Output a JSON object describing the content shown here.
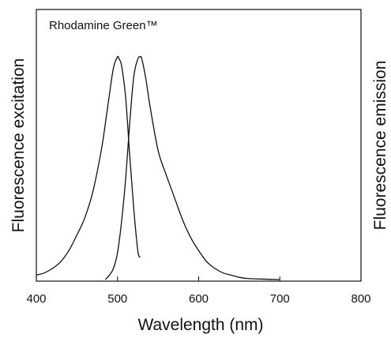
{
  "chart_data": {
    "type": "line",
    "title": "Rhodamine Green™",
    "xlabel": "Wavelength (nm)",
    "ylabel_left": "Fluorescence excitation",
    "ylabel_right": "Fluorescence emission",
    "xlim": [
      400,
      800
    ],
    "ylim": [
      0,
      1
    ],
    "x_ticks": [
      400,
      500,
      600,
      700,
      800
    ],
    "y_ticks_shown": false,
    "grid": false,
    "legend": "none",
    "line_color": "#111111",
    "series": [
      {
        "x": [
          400,
          410,
          420,
          430,
          440,
          450,
          460,
          470,
          480,
          485,
          490,
          495,
          500,
          502,
          505,
          510,
          515,
          520,
          525,
          528
        ],
        "y": [
          0.02,
          0.03,
          0.05,
          0.08,
          0.13,
          0.2,
          0.28,
          0.4,
          0.58,
          0.7,
          0.83,
          0.95,
          1.0,
          0.99,
          0.96,
          0.82,
          0.56,
          0.32,
          0.13,
          0.1
        ]
      },
      {
        "x": [
          485,
          490,
          495,
          500,
          505,
          510,
          515,
          520,
          525,
          528,
          530,
          535,
          540,
          550,
          560,
          570,
          580,
          590,
          600,
          610,
          620,
          630,
          640,
          650,
          660,
          680,
          700
        ],
        "y": [
          0.0,
          0.02,
          0.05,
          0.12,
          0.26,
          0.45,
          0.7,
          0.91,
          0.99,
          1.0,
          0.99,
          0.9,
          0.78,
          0.58,
          0.47,
          0.37,
          0.27,
          0.19,
          0.13,
          0.08,
          0.05,
          0.03,
          0.02,
          0.01,
          0.005,
          0.002,
          0.0
        ]
      }
    ]
  }
}
